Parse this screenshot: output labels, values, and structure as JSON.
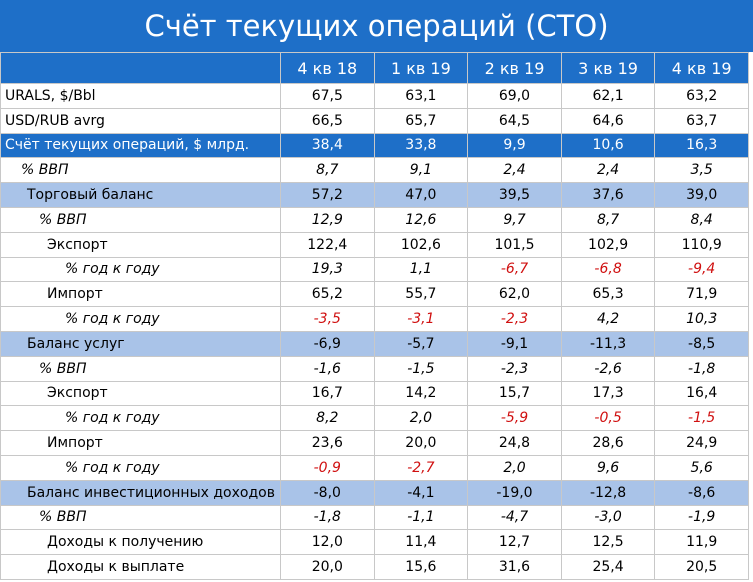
{
  "title": "Счёт текущих операций (СТО)",
  "table": {
    "header": [
      "4 кв 18",
      "1 кв 19",
      "2 кв 19",
      "3 кв 19",
      "4 кв 19"
    ],
    "rows": [
      {
        "label": "URALS, $/Bbl",
        "cells": [
          "67,5",
          "63,1",
          "69,0",
          "62,1",
          "63,2"
        ]
      },
      {
        "label": "USD/RUB avrg",
        "cells": [
          "66,5",
          "65,7",
          "64,5",
          "64,6",
          "63,7"
        ]
      },
      {
        "label": "Счёт текущих операций, $ млрд.",
        "cells": [
          "38,4",
          "33,8",
          "9,9",
          "10,6",
          "16,3"
        ]
      },
      {
        "label": "% ВВП",
        "cells": [
          "8,7",
          "9,1",
          "2,4",
          "2,4",
          "3,5"
        ]
      },
      {
        "label": "Торговый баланс",
        "cells": [
          "57,2",
          "47,0",
          "39,5",
          "37,6",
          "39,0"
        ]
      },
      {
        "label": "% ВВП",
        "cells": [
          "12,9",
          "12,6",
          "9,7",
          "8,7",
          "8,4"
        ]
      },
      {
        "label": "Экспорт",
        "cells": [
          "122,4",
          "102,6",
          "101,5",
          "102,9",
          "110,9"
        ]
      },
      {
        "label": "% год к году",
        "cells": [
          "19,3",
          "1,1",
          "-6,7",
          "-6,8",
          "-9,4"
        ]
      },
      {
        "label": "Импорт",
        "cells": [
          "65,2",
          "55,7",
          "62,0",
          "65,3",
          "71,9"
        ]
      },
      {
        "label": "% год к году",
        "cells": [
          "-3,5",
          "-3,1",
          "-2,3",
          "4,2",
          "10,3"
        ]
      },
      {
        "label": "Баланс услуг",
        "cells": [
          "-6,9",
          "-5,7",
          "-9,1",
          "-11,3",
          "-8,5"
        ]
      },
      {
        "label": "% ВВП",
        "cells": [
          "-1,6",
          "-1,5",
          "-2,3",
          "-2,6",
          "-1,8"
        ]
      },
      {
        "label": "Экспорт",
        "cells": [
          "16,7",
          "14,2",
          "15,7",
          "17,3",
          "16,4"
        ]
      },
      {
        "label": "% год к году",
        "cells": [
          "8,2",
          "2,0",
          "-5,9",
          "-0,5",
          "-1,5"
        ]
      },
      {
        "label": "Импорт",
        "cells": [
          "23,6",
          "20,0",
          "24,8",
          "28,6",
          "24,9"
        ]
      },
      {
        "label": "% год к году",
        "cells": [
          "-0,9",
          "-2,7",
          "2,0",
          "9,6",
          "5,6"
        ]
      },
      {
        "label": "Баланс инвестиционных доходов",
        "cells": [
          "-8,0",
          "-4,1",
          "-19,0",
          "-12,8",
          "-8,6"
        ]
      },
      {
        "label": "% ВВП",
        "cells": [
          "-1,8",
          "-1,1",
          "-4,7",
          "-3,0",
          "-1,9"
        ]
      },
      {
        "label": "Доходы к получению",
        "cells": [
          "12,0",
          "11,4",
          "12,7",
          "12,5",
          "11,9"
        ]
      },
      {
        "label": "Доходы к выплате",
        "cells": [
          "20,0",
          "15,6",
          "31,6",
          "25,4",
          "20,5"
        ]
      }
    ]
  }
}
